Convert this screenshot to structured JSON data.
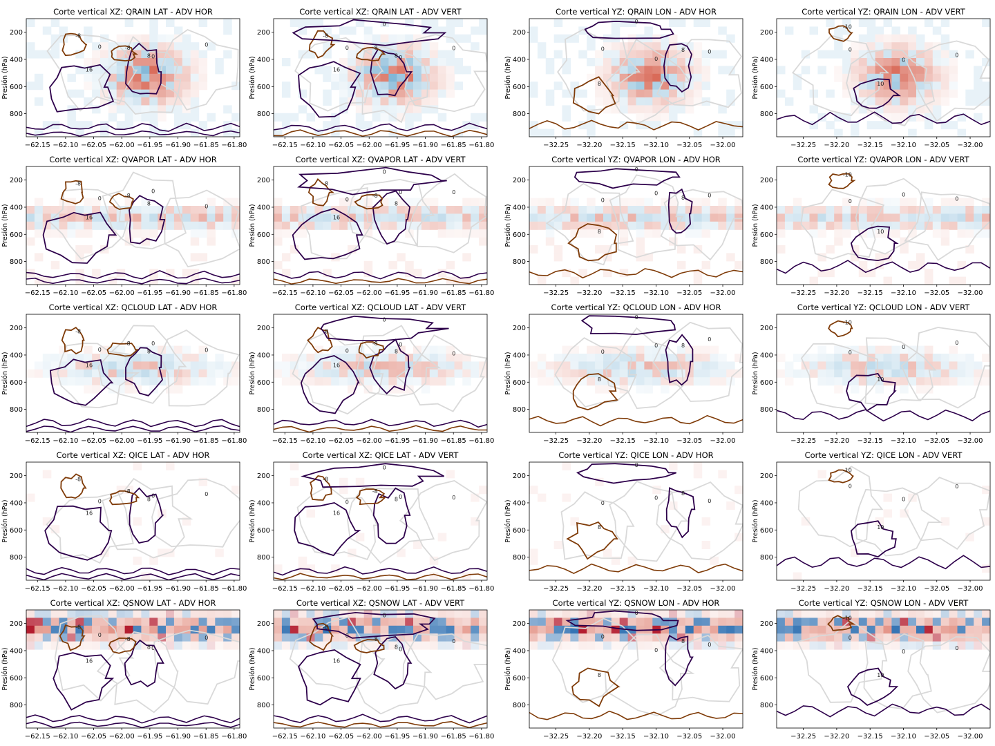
{
  "figure": {
    "description_rows": 5,
    "description_cols": 4,
    "ylabel": "Presión (hPa)"
  },
  "chart_data": [
    {
      "type": "heatmap",
      "title": "Corte vertical XZ: QRAIN LAT - ADV HOR",
      "xlabel": "",
      "ylabel": "Presión (hPa)",
      "xticks": [
        "−62.15",
        "−62.10",
        "−62.05",
        "−62.00",
        "−61.95",
        "−61.90",
        "−61.85",
        "−61.80"
      ],
      "yticks": [
        "200",
        "400",
        "600",
        "800"
      ],
      "xlim": [
        -62.17,
        -61.79
      ],
      "ylim": [
        970,
        100
      ]
    },
    {
      "type": "heatmap",
      "title": "Corte vertical XZ: QRAIN LAT - ADV VERT",
      "xlabel": "",
      "ylabel": "Presión (hPa)",
      "xticks": [
        "−62.15",
        "−62.10",
        "−62.05",
        "−62.00",
        "−61.95",
        "−61.90",
        "−61.85",
        "−61.80"
      ],
      "yticks": [
        "200",
        "400",
        "600",
        "800"
      ],
      "xlim": [
        -62.17,
        -61.79
      ],
      "ylim": [
        970,
        100
      ]
    },
    {
      "type": "heatmap",
      "title": "Corte vertical YZ: QRAIN LON - ADV HOR",
      "xlabel": "",
      "ylabel": "Presión (hPa)",
      "xticks": [
        "−32.25",
        "−32.20",
        "−32.15",
        "−32.10",
        "−32.05",
        "−32.00"
      ],
      "yticks": [
        "200",
        "400",
        "600",
        "800"
      ],
      "xlim": [
        -32.29,
        -31.97
      ],
      "ylim": [
        970,
        100
      ]
    },
    {
      "type": "heatmap",
      "title": "Corte vertical YZ: QRAIN LON - ADV VERT",
      "xlabel": "",
      "ylabel": "Presión (hPa)",
      "xticks": [
        "−32.25",
        "−32.20",
        "−32.15",
        "−32.10",
        "−32.05",
        "−32.00"
      ],
      "yticks": [
        "200",
        "400",
        "600",
        "800"
      ],
      "xlim": [
        -32.29,
        -31.97
      ],
      "ylim": [
        970,
        100
      ]
    },
    {
      "type": "heatmap",
      "title": "Corte vertical XZ: QVAPOR LAT - ADV HOR",
      "xlabel": "",
      "ylabel": "Presión (hPa)",
      "xticks": [
        "−62.15",
        "−62.10",
        "−62.05",
        "−62.00",
        "−61.95",
        "−61.90",
        "−61.85",
        "−61.80"
      ],
      "yticks": [
        "200",
        "400",
        "600",
        "800"
      ],
      "xlim": [
        -62.17,
        -61.79
      ],
      "ylim": [
        970,
        100
      ]
    },
    {
      "type": "heatmap",
      "title": "Corte vertical XZ: QVAPOR LAT - ADV VERT",
      "xlabel": "",
      "ylabel": "Presión (hPa)",
      "xticks": [
        "−62.15",
        "−62.10",
        "−62.05",
        "−62.00",
        "−61.95",
        "−61.90",
        "−61.85",
        "−61.80"
      ],
      "yticks": [
        "200",
        "400",
        "600",
        "800"
      ],
      "xlim": [
        -62.17,
        -61.79
      ],
      "ylim": [
        970,
        100
      ]
    },
    {
      "type": "heatmap",
      "title": "Corte vertical YZ: QVAPOR LON - ADV HOR",
      "xlabel": "",
      "ylabel": "Presión (hPa)",
      "xticks": [
        "−32.25",
        "−32.20",
        "−32.15",
        "−32.10",
        "−32.05",
        "−32.00"
      ],
      "yticks": [
        "200",
        "400",
        "600",
        "800"
      ],
      "xlim": [
        -32.29,
        -31.97
      ],
      "ylim": [
        970,
        100
      ]
    },
    {
      "type": "heatmap",
      "title": "Corte vertical YZ: QVAPOR LON - ADV VERT",
      "xlabel": "",
      "ylabel": "Presión (hPa)",
      "xticks": [
        "−32.25",
        "−32.20",
        "−32.15",
        "−32.10",
        "−32.05",
        "−32.00"
      ],
      "yticks": [
        "200",
        "400",
        "600",
        "800"
      ],
      "xlim": [
        -32.29,
        -31.97
      ],
      "ylim": [
        970,
        100
      ]
    },
    {
      "type": "heatmap",
      "title": "Corte vertical XZ: QCLOUD LAT - ADV HOR",
      "xlabel": "",
      "ylabel": "Presión (hPa)",
      "xticks": [
        "−62.15",
        "−62.10",
        "−62.05",
        "−62.00",
        "−61.95",
        "−61.90",
        "−61.85",
        "−61.80"
      ],
      "yticks": [
        "200",
        "400",
        "600",
        "800"
      ],
      "xlim": [
        -62.17,
        -61.79
      ],
      "ylim": [
        970,
        100
      ]
    },
    {
      "type": "heatmap",
      "title": "Corte vertical XZ: QCLOUD LAT - ADV VERT",
      "xlabel": "",
      "ylabel": "Presión (hPa)",
      "xticks": [
        "−62.15",
        "−62.10",
        "−62.05",
        "−62.00",
        "−61.95",
        "−61.90",
        "−61.85",
        "−61.80"
      ],
      "yticks": [
        "200",
        "400",
        "600",
        "800"
      ],
      "xlim": [
        -62.17,
        -61.79
      ],
      "ylim": [
        970,
        100
      ]
    },
    {
      "type": "heatmap",
      "title": "Corte vertical YZ: QCLOUD LON - ADV HOR",
      "xlabel": "",
      "ylabel": "Presión (hPa)",
      "xticks": [
        "−32.25",
        "−32.20",
        "−32.15",
        "−32.10",
        "−32.05",
        "−32.00"
      ],
      "yticks": [
        "200",
        "400",
        "600",
        "800"
      ],
      "xlim": [
        -32.29,
        -31.97
      ],
      "ylim": [
        970,
        100
      ]
    },
    {
      "type": "heatmap",
      "title": "Corte vertical YZ: QCLOUD LON - ADV VERT",
      "xlabel": "",
      "ylabel": "Presión (hPa)",
      "xticks": [
        "−32.25",
        "−32.20",
        "−32.15",
        "−32.10",
        "−32.05",
        "−32.00"
      ],
      "yticks": [
        "200",
        "400",
        "600",
        "800"
      ],
      "xlim": [
        -32.29,
        -31.97
      ],
      "ylim": [
        970,
        100
      ]
    },
    {
      "type": "heatmap",
      "title": "Corte vertical XZ: QICE LAT - ADV HOR",
      "xlabel": "",
      "ylabel": "Presión (hPa)",
      "xticks": [
        "−62.15",
        "−62.10",
        "−62.05",
        "−62.00",
        "−61.95",
        "−61.90",
        "−61.85",
        "−61.80"
      ],
      "yticks": [
        "200",
        "400",
        "600",
        "800"
      ],
      "xlim": [
        -62.17,
        -61.79
      ],
      "ylim": [
        970,
        100
      ]
    },
    {
      "type": "heatmap",
      "title": "Corte vertical XZ: QICE LAT - ADV VERT",
      "xlabel": "",
      "ylabel": "Presión (hPa)",
      "xticks": [
        "−62.15",
        "−62.10",
        "−62.05",
        "−62.00",
        "−61.95",
        "−61.90",
        "−61.85",
        "−61.80"
      ],
      "yticks": [
        "200",
        "400",
        "600",
        "800"
      ],
      "xlim": [
        -62.17,
        -61.79
      ],
      "ylim": [
        970,
        100
      ]
    },
    {
      "type": "heatmap",
      "title": "Corte vertical YZ: QICE LON - ADV HOR",
      "xlabel": "",
      "ylabel": "Presión (hPa)",
      "xticks": [
        "−32.25",
        "−32.20",
        "−32.15",
        "−32.10",
        "−32.05",
        "−32.00"
      ],
      "yticks": [
        "200",
        "400",
        "600",
        "800"
      ],
      "xlim": [
        -32.29,
        -31.97
      ],
      "ylim": [
        970,
        100
      ]
    },
    {
      "type": "heatmap",
      "title": "Corte vertical YZ: QICE LON - ADV VERT",
      "xlabel": "",
      "ylabel": "Presión (hPa)",
      "xticks": [
        "−32.25",
        "−32.20",
        "−32.15",
        "−32.10",
        "−32.05",
        "−32.00"
      ],
      "yticks": [
        "200",
        "400",
        "600",
        "800"
      ],
      "xlim": [
        -32.29,
        -31.97
      ],
      "ylim": [
        970,
        100
      ]
    },
    {
      "type": "heatmap",
      "title": "Corte vertical XZ: QSNOW LAT - ADV HOR",
      "xlabel": "",
      "ylabel": "Presión (hPa)",
      "xticks": [
        "−62.15",
        "−62.10",
        "−62.05",
        "−62.00",
        "−61.95",
        "−61.90",
        "−61.85",
        "−61.80"
      ],
      "yticks": [
        "200",
        "400",
        "600",
        "800"
      ],
      "xlim": [
        -62.17,
        -61.79
      ],
      "ylim": [
        970,
        100
      ]
    },
    {
      "type": "heatmap",
      "title": "Corte vertical XZ: QSNOW LAT - ADV VERT",
      "xlabel": "",
      "ylabel": "Presión (hPa)",
      "xticks": [
        "−62.15",
        "−62.10",
        "−62.05",
        "−62.00",
        "−61.95",
        "−61.90",
        "−61.85",
        "−61.80"
      ],
      "yticks": [
        "200",
        "400",
        "600",
        "800"
      ],
      "xlim": [
        -62.17,
        -61.79
      ],
      "ylim": [
        970,
        100
      ]
    },
    {
      "type": "heatmap",
      "title": "Corte vertical YZ: QSNOW LON - ADV HOR",
      "xlabel": "",
      "ylabel": "Presión (hPa)",
      "xticks": [
        "−32.25",
        "−32.20",
        "−32.15",
        "−32.10",
        "−32.05",
        "−32.00"
      ],
      "yticks": [
        "200",
        "400",
        "600",
        "800"
      ],
      "xlim": [
        -32.29,
        -31.97
      ],
      "ylim": [
        970,
        100
      ]
    },
    {
      "type": "heatmap",
      "title": "Corte vertical YZ: QSNOW LON - ADV VERT",
      "xlabel": "",
      "ylabel": "Presión (hPa)",
      "xticks": [
        "−32.25",
        "−32.20",
        "−32.15",
        "−32.10",
        "−32.05",
        "−32.00"
      ],
      "yticks": [
        "200",
        "400",
        "600",
        "800"
      ],
      "xlim": [
        -32.29,
        -31.97
      ],
      "ylim": [
        970,
        100
      ]
    }
  ],
  "colors": {
    "positive": "#d6604d",
    "positive_strong": "#b2182b",
    "negative": "#4393c3",
    "negative_strong": "#2166ac",
    "contour_pos": "#2d004b",
    "contour_neg": "#7f3b08",
    "contour_zero": "#d9d9d9"
  }
}
